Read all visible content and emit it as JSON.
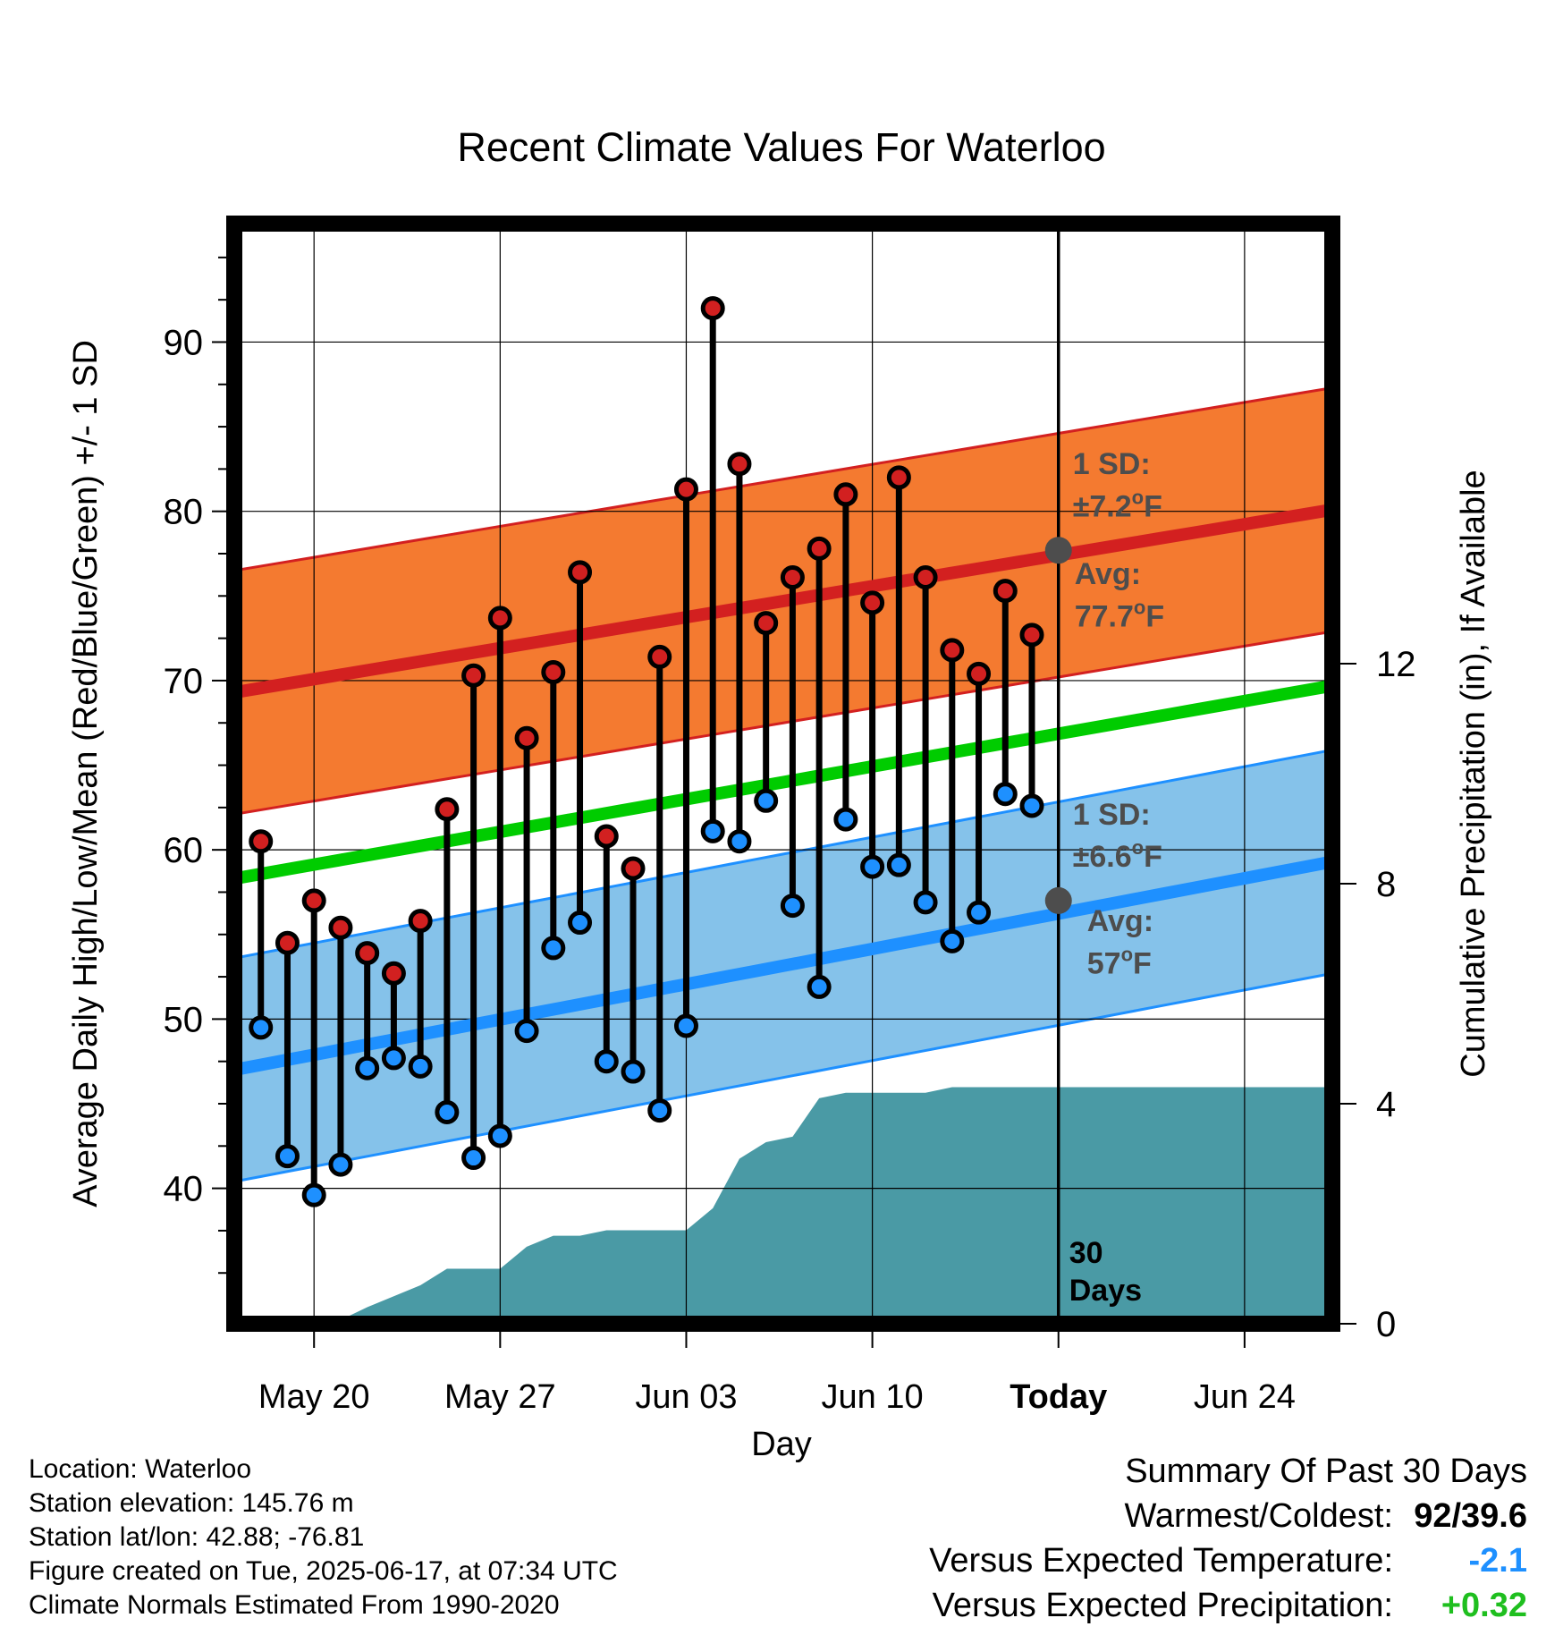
{
  "chart_data": {
    "type": "line",
    "title": "Recent Climate Values For Waterloo",
    "xlabel": "Day",
    "ylabel": "Average Daily High/Low/Mean (Red/Blue/Green) +/- 1 SD",
    "y2label": "Cumulative Precipitation (in), If Available",
    "ylim": [
      32,
      97
    ],
    "y2lim": [
      0,
      20
    ],
    "x_tick_labels": [
      "May 20",
      "May 27",
      "Jun 03",
      "Jun 10",
      "Today",
      "Jun 24"
    ],
    "x_tick_day": [
      3,
      10,
      17,
      24,
      31,
      38
    ],
    "y_tick_labels": [
      "40",
      "50",
      "60",
      "70",
      "80",
      "90"
    ],
    "y2_tick_labels": [
      "0",
      "4",
      "8",
      "12"
    ],
    "xrange_day": [
      0,
      41.3
    ],
    "today_day": 31,
    "days_label": "30\nDays",
    "normals": {
      "high_mean": {
        "day": [
          0,
          41.3
        ],
        "values": [
          69.3,
          80.1
        ]
      },
      "high_sd": 7.2,
      "low_mean": {
        "day": [
          0,
          41.3
        ],
        "values": [
          47.0,
          59.3
        ]
      },
      "low_sd": 6.6,
      "mean": {
        "day": [
          0,
          41.3
        ],
        "values": [
          58.3,
          69.7
        ]
      }
    },
    "highs": [
      60.5,
      54.5,
      57.0,
      55.4,
      53.9,
      52.7,
      55.8,
      62.4,
      70.3,
      73.7,
      66.6,
      70.5,
      76.4,
      60.8,
      58.9,
      71.4,
      81.3,
      92.0,
      82.8,
      73.4,
      76.1,
      77.8,
      81.0,
      74.6,
      82.0,
      76.1,
      71.8,
      70.4,
      75.3,
      72.7
    ],
    "lows": [
      49.5,
      41.9,
      39.6,
      41.4,
      47.1,
      47.7,
      47.2,
      44.5,
      41.8,
      43.1,
      49.3,
      54.2,
      55.7,
      47.5,
      46.9,
      44.6,
      49.6,
      61.1,
      60.5,
      62.9,
      56.7,
      51.9,
      61.8,
      59.0,
      59.1,
      56.9,
      54.6,
      56.3,
      63.3,
      62.6
    ],
    "first_obs_day": 1,
    "precip_cumulative": {
      "day": [
        3.7,
        5,
        6,
        7,
        8,
        9,
        10,
        11,
        12,
        13,
        14,
        15,
        16,
        17,
        18,
        19,
        20,
        21,
        22,
        23,
        24,
        25,
        26,
        27,
        28,
        41.3
      ],
      "values": [
        0.0,
        0.3,
        0.5,
        0.7,
        1.0,
        1.0,
        1.0,
        1.4,
        1.6,
        1.6,
        1.7,
        1.7,
        1.7,
        1.7,
        2.1,
        3.0,
        3.3,
        3.4,
        4.1,
        4.2,
        4.2,
        4.2,
        4.2,
        4.3,
        4.3,
        4.3
      ]
    },
    "annotations": {
      "high_sd_label": "1 SD:",
      "high_sd_value": "±7.2°F",
      "high_avg_label": "Avg:",
      "high_avg_value": "77.7°F",
      "high_avg": 77.7,
      "low_sd_label": "1 SD:",
      "low_sd_value": "±6.6°F",
      "low_avg_label": "Avg:",
      "low_avg_value": "57°F",
      "low_avg": 57.0
    },
    "colors": {
      "high_band": "#f47a30",
      "high_line": "#d32020",
      "low_band": "#85c2ea",
      "low_line": "#1e90ff",
      "mean_line": "#00cc00",
      "precip": "#4a9aa5",
      "high_marker": "#d22020",
      "low_marker": "#1e90ff",
      "annotation": "#4d4d4d"
    },
    "grid": true
  },
  "footer": {
    "location": "Location: Waterloo",
    "elevation": "Station elevation: 145.76 m",
    "latlon": "Station lat/lon: 42.88; -76.81",
    "created": "Figure created on Tue, 2025-06-17, at 07:34 UTC",
    "normals": "Climate Normals Estimated From 1990-2020"
  },
  "summary": {
    "title": "Summary Of Past 30 Days",
    "warmest_label": "Warmest/Coldest:",
    "warmest_value": "92/39.6",
    "temp_label": "Versus Expected Temperature:",
    "temp_value": "-2.1",
    "temp_color": "#1e90ff",
    "precip_label": "Versus Expected Precipitation:",
    "precip_value": "+0.32",
    "precip_color": "#1fbf1f"
  }
}
